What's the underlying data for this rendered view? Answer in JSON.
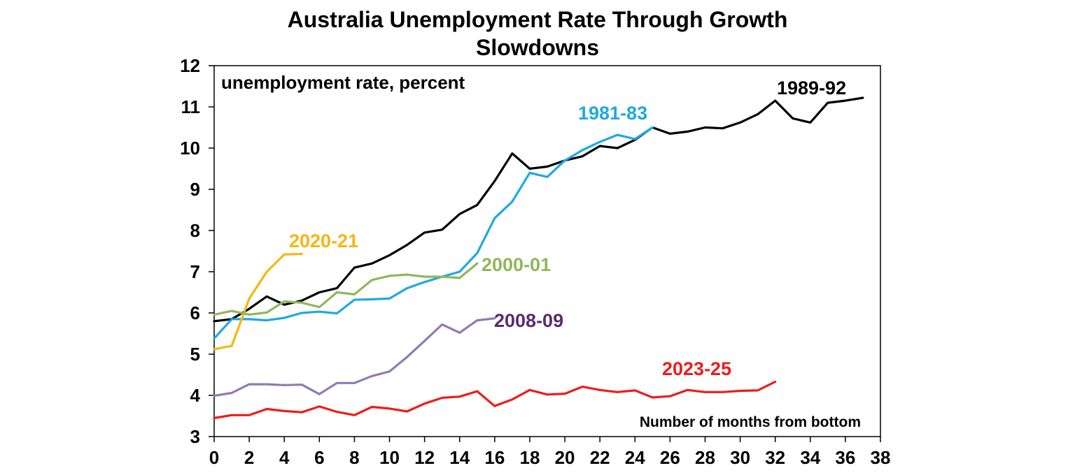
{
  "chart_data": {
    "type": "line",
    "title": [
      "Australia Unemployment Rate Through Growth",
      "Slowdowns"
    ],
    "annotation_top_left": "unemployment rate, percent",
    "annotation_bottom_right": "Number of months from bottom",
    "xlim": [
      0,
      38
    ],
    "ylim": [
      3,
      12
    ],
    "x_ticks": [
      0,
      2,
      4,
      6,
      8,
      10,
      12,
      14,
      16,
      18,
      20,
      22,
      24,
      26,
      28,
      30,
      32,
      34,
      36,
      38
    ],
    "y_ticks": [
      3,
      4,
      5,
      6,
      7,
      8,
      9,
      10,
      11,
      12
    ],
    "grid": false,
    "series": [
      {
        "name": "1989-92",
        "color": "#000000",
        "label_color": "#000000",
        "values": [
          5.8,
          5.85,
          6.1,
          6.4,
          6.2,
          6.3,
          6.5,
          6.6,
          7.1,
          7.2,
          7.4,
          7.65,
          7.95,
          8.02,
          8.4,
          8.62,
          9.2,
          9.87,
          9.5,
          9.55,
          9.7,
          9.8,
          10.05,
          10.0,
          10.2,
          10.5,
          10.35,
          10.4,
          10.5,
          10.48,
          10.62,
          10.82,
          11.15,
          10.72,
          10.62,
          11.1,
          11.15,
          11.22
        ]
      },
      {
        "name": "1981-83",
        "color": "#1ea9e1",
        "label_color": "#1ea9e1",
        "values": [
          5.38,
          5.85,
          5.85,
          5.82,
          5.88,
          6.0,
          6.03,
          5.99,
          6.32,
          6.33,
          6.35,
          6.6,
          6.75,
          6.88,
          7.0,
          7.45,
          8.3,
          8.7,
          9.4,
          9.3,
          9.7,
          9.95,
          10.15,
          10.32,
          10.22,
          10.5
        ]
      },
      {
        "name": "2020-21",
        "color": "#f6b613",
        "label_color": "#f6b613",
        "values": [
          5.12,
          5.2,
          6.35,
          7.0,
          7.42,
          7.43
        ]
      },
      {
        "name": "2000-01",
        "color": "#8fb75a",
        "label_color": "#8fb75a",
        "values": [
          5.96,
          6.05,
          5.96,
          6.01,
          6.28,
          6.25,
          6.14,
          6.5,
          6.45,
          6.8,
          6.9,
          6.93,
          6.88,
          6.88,
          6.85,
          7.2
        ]
      },
      {
        "name": "2008-09",
        "color": "#8e7bb5",
        "label_color": "#5b2a6e",
        "values": [
          3.99,
          4.06,
          4.27,
          4.27,
          4.25,
          4.26,
          4.03,
          4.3,
          4.3,
          4.47,
          4.58,
          4.93,
          5.32,
          5.72,
          5.52,
          5.82,
          5.87
        ]
      },
      {
        "name": "2023-25",
        "color": "#ee1c1c",
        "label_color": "#ee1c1c",
        "values": [
          3.45,
          3.52,
          3.52,
          3.67,
          3.62,
          3.59,
          3.73,
          3.6,
          3.52,
          3.72,
          3.68,
          3.61,
          3.8,
          3.94,
          3.97,
          4.1,
          3.74,
          3.9,
          4.13,
          4.02,
          4.04,
          4.21,
          4.13,
          4.08,
          4.12,
          3.95,
          3.98,
          4.13,
          4.08,
          4.08,
          4.11,
          4.12,
          4.33
        ]
      }
    ]
  }
}
